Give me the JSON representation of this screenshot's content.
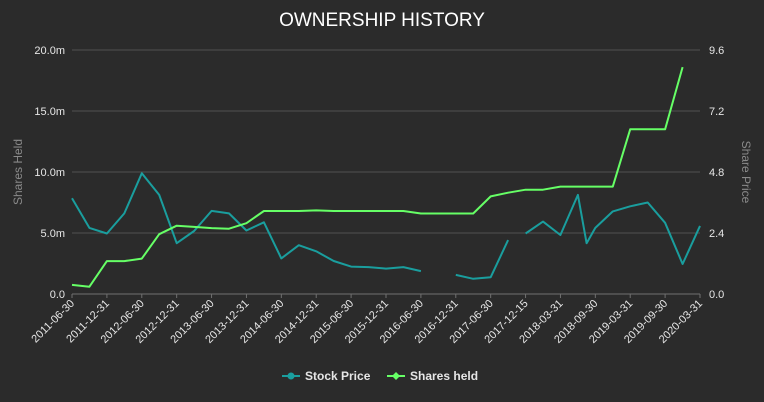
{
  "chart_data": {
    "type": "line",
    "title": "OWNERSHIP HISTORY",
    "categories": [
      "2011-06-30",
      "2011-12-31",
      "2012-06-30",
      "2012-12-31",
      "2013-06-30",
      "2013-12-31",
      "2014-06-30",
      "2014-12-31",
      "2015-06-30",
      "2015-12-31",
      "2016-06-30",
      "2016-12-31",
      "2017-06-30",
      "2017-12-15",
      "2018-03-31",
      "2018-09-30",
      "2019-03-31",
      "2019-09-30",
      "2020-03-31"
    ],
    "x": [
      2011.0,
      2011.25,
      2011.5,
      2011.75,
      2012.0,
      2012.25,
      2012.5,
      2012.75,
      2013.0,
      2013.25,
      2013.5,
      2013.75,
      2014.0,
      2014.25,
      2014.5,
      2014.75,
      2015.0,
      2015.25,
      2015.5,
      2015.75,
      2016.0,
      2016.25,
      2016.5,
      2016.75,
      2017.0,
      2017.25,
      2017.5,
      2017.75,
      2018.0,
      2018.25,
      2018.5,
      2018.75,
      2019.0,
      2019.25,
      2019.5,
      2019.75,
      2020.0,
      2020.25,
      2020.5,
      2020.75
    ],
    "y_left": {
      "label": "Shares Held",
      "ticks": [
        "0.0",
        "5.0m",
        "10.0m",
        "15.0m",
        "20.0m"
      ],
      "range": [
        0,
        20
      ]
    },
    "y_right": {
      "label": "Share Price",
      "ticks": [
        "0.0",
        "2.4",
        "4.8",
        "7.2",
        "9.6"
      ],
      "range": [
        0,
        9.6
      ]
    },
    "series": [
      {
        "name": "Stock Price",
        "color": "#1a9e9e",
        "axis": "right",
        "points": [
          [
            2011.0,
            3.77
          ],
          [
            2011.5,
            2.6
          ],
          [
            2012.0,
            2.38
          ],
          [
            2012.5,
            3.17
          ],
          [
            2013.0,
            4.75
          ],
          [
            2013.5,
            3.9
          ],
          [
            2014.0,
            2.0
          ],
          [
            2014.5,
            2.48
          ],
          [
            2015.0,
            3.27
          ],
          [
            2015.5,
            3.17
          ],
          [
            2016.0,
            2.5
          ],
          [
            2016.5,
            2.82
          ],
          [
            2017.0,
            1.4
          ],
          [
            2017.5,
            1.92
          ],
          [
            2018.0,
            1.68
          ],
          [
            2018.5,
            1.3
          ],
          [
            2019.0,
            1.08
          ],
          [
            2019.5,
            1.06
          ],
          [
            2020.0,
            1.0
          ],
          [
            2020.5,
            1.06
          ],
          [
            2021.0,
            0.9
          ],
          null,
          [
            2022.0,
            0.75
          ],
          [
            2022.5,
            0.6
          ],
          [
            2023.0,
            0.66
          ],
          [
            2023.5,
            2.12
          ],
          null,
          [
            2024.0,
            2.38
          ],
          [
            2024.5,
            2.85
          ],
          [
            2025.0,
            2.32
          ],
          [
            2025.5,
            3.9
          ],
          [
            2025.75,
            2.0
          ],
          [
            2026.0,
            2.6
          ],
          [
            2026.5,
            3.25
          ],
          [
            2027.0,
            3.45
          ],
          [
            2027.5,
            3.6
          ],
          [
            2028.0,
            2.8
          ],
          [
            2028.5,
            1.18
          ],
          [
            2029.0,
            2.68
          ]
        ]
      },
      {
        "name": "Shares held",
        "color": "#66ff66",
        "axis": "left",
        "points": [
          [
            2011.0,
            0.75
          ],
          [
            2011.5,
            0.6
          ],
          [
            2012.0,
            2.7
          ],
          [
            2012.5,
            2.7
          ],
          [
            2013.0,
            2.9
          ],
          [
            2013.5,
            4.9
          ],
          [
            2014.0,
            5.6
          ],
          [
            2014.5,
            5.5
          ],
          [
            2015.0,
            5.4
          ],
          [
            2015.5,
            5.35
          ],
          [
            2016.0,
            5.8
          ],
          [
            2016.5,
            6.8
          ],
          [
            2017.0,
            6.8
          ],
          [
            2017.5,
            6.8
          ],
          [
            2018.0,
            6.85
          ],
          [
            2018.5,
            6.8
          ],
          [
            2019.0,
            6.8
          ],
          [
            2019.5,
            6.8
          ],
          [
            2020.0,
            6.8
          ],
          [
            2020.5,
            6.8
          ],
          [
            2021.0,
            6.6
          ],
          [
            2021.5,
            6.6
          ],
          [
            2022.0,
            6.6
          ],
          [
            2022.5,
            6.6
          ],
          [
            2023.0,
            8.0
          ],
          [
            2023.5,
            8.3
          ],
          [
            2024.0,
            8.55
          ],
          [
            2024.5,
            8.55
          ],
          [
            2025.0,
            8.8
          ],
          [
            2025.5,
            8.8
          ],
          [
            2026.0,
            8.8
          ],
          [
            2026.5,
            8.8
          ],
          [
            2027.0,
            13.5
          ],
          [
            2027.5,
            13.5
          ],
          [
            2028.0,
            13.5
          ],
          [
            2028.5,
            18.6
          ]
        ]
      }
    ],
    "legend": [
      "Stock Price",
      "Shares held"
    ],
    "legend_position": "bottom-center",
    "grid": true
  }
}
